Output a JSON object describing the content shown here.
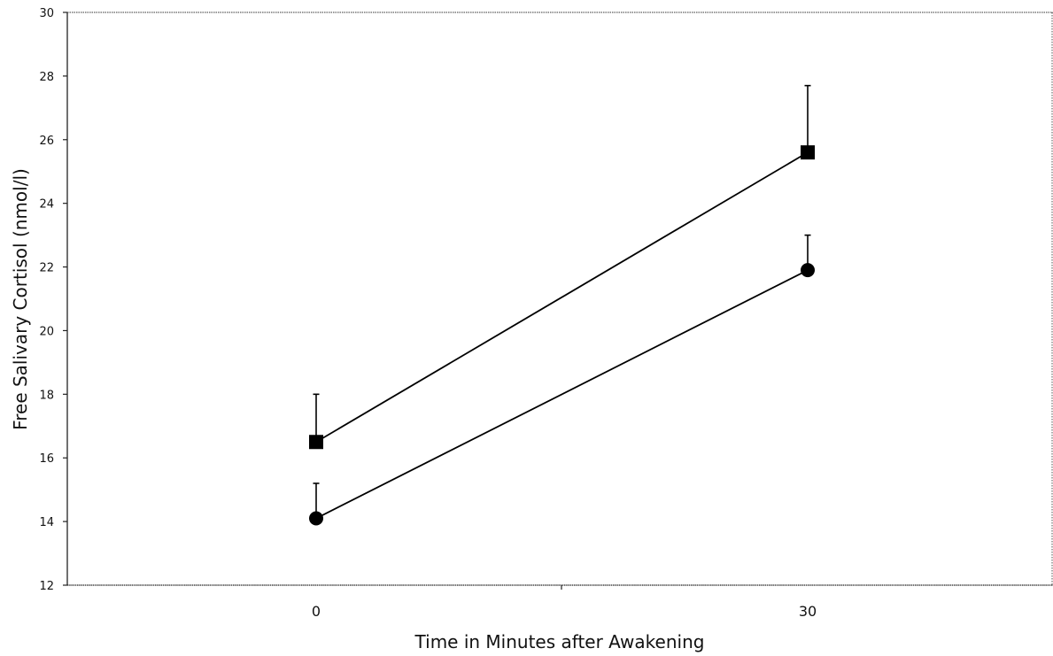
{
  "chart_data": {
    "type": "line",
    "title": "",
    "xlabel": "Time in Minutes after Awakening",
    "ylabel": "Free Salivary Cortisol (nmol/l)",
    "categories": [
      "0",
      "30"
    ],
    "ylim": [
      12,
      30
    ],
    "yticks": [
      12,
      14,
      16,
      18,
      20,
      22,
      24,
      26,
      28,
      30
    ],
    "grid": false,
    "legend": "none",
    "series": [
      {
        "marker": "square",
        "values": [
          16.5,
          25.6
        ],
        "error_upper": [
          1.5,
          2.1
        ],
        "color": "#000000"
      },
      {
        "marker": "circle",
        "values": [
          14.1,
          21.9
        ],
        "error_upper": [
          1.1,
          1.1
        ],
        "color": "#000000"
      }
    ]
  }
}
